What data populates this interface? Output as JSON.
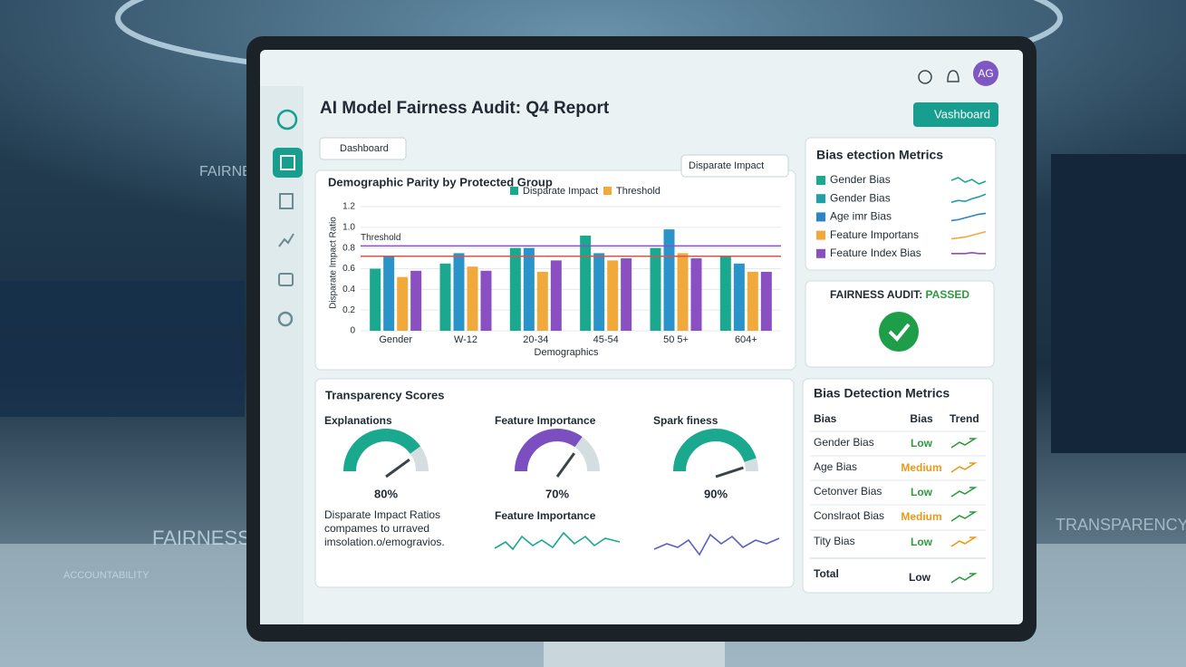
{
  "header": {
    "title": "AI Model Fairness Audit: Q4 Report",
    "avatar": "AG",
    "button": "Vashboard",
    "view_select": "Dashboard"
  },
  "background_words": [
    "FAIRNESS",
    "FAIRNESS",
    "ACCOUNTABILITY",
    "TRANSPARENCY"
  ],
  "chart_data": {
    "type": "bar",
    "title": "Demographic Parity by Protected Group",
    "metric_select": "Disparate Impact",
    "legend": [
      {
        "name": "Disparate Impact",
        "color": "#1aa88f"
      },
      {
        "name": "Threshold",
        "color": "#f2a93b"
      }
    ],
    "y_label": "Disparate Impact Ratio",
    "x_label": "Demographics",
    "categories": [
      "Gender",
      "W-12",
      "20-34",
      "45-54",
      "50 5+",
      "604+"
    ],
    "series": [
      {
        "color": "#1aa88f",
        "values": [
          0.6,
          0.65,
          0.8,
          0.92,
          0.8,
          0.72
        ]
      },
      {
        "color": "#2a93c9",
        "values": [
          0.72,
          0.75,
          0.8,
          0.75,
          0.98,
          0.65
        ]
      },
      {
        "color": "#f2a93b",
        "values": [
          0.52,
          0.62,
          0.57,
          0.68,
          0.75,
          0.57
        ]
      },
      {
        "color": "#8a4fc0",
        "values": [
          0.58,
          0.58,
          0.68,
          0.7,
          0.7,
          0.57
        ]
      }
    ],
    "annotations": [
      {
        "label": "Threshold",
        "value": 0.82,
        "color": "#8a4fc0"
      }
    ],
    "reference_lines": [
      {
        "value": 0.72,
        "color": "#d9534f"
      }
    ],
    "ylim": [
      0,
      1.2
    ],
    "yticks": [
      0,
      0.2,
      0.4,
      0.6,
      0.8,
      {
        "value": 1,
        "label": "1.0"
      },
      1.2
    ],
    "grid": true
  },
  "metrics_panel": {
    "title": "Bias etection Metrics",
    "items": [
      {
        "name": "Gender Bias",
        "color": "#1aa88f"
      },
      {
        "name": "Gender Bias",
        "color": "#1f9fa8"
      },
      {
        "name": "Age imr Bias",
        "color": "#2a84c9"
      },
      {
        "name": "Feature Importans",
        "color": "#f2a93b"
      },
      {
        "name": "Feature Index Bias",
        "color": "#8a4fc0"
      }
    ]
  },
  "audit": {
    "label": "FAIRNESS AUDIT: ",
    "status": "PASSED"
  },
  "transparency": {
    "title": "Transparency Scores",
    "gauges": [
      {
        "title": "Explanations",
        "value": 80,
        "value_label": "80%",
        "color": "#1aa88f"
      },
      {
        "title": "Feature Importance",
        "value": 70,
        "value_label": "70%",
        "color": "#7b4fc0"
      },
      {
        "title": "Spark finess",
        "value": 90,
        "value_label": "90%",
        "color": "#1aa88f"
      }
    ],
    "note": [
      "Disparate Impact Ratios",
      "compames to urraved",
      "imsolation.o/emogravios."
    ],
    "spark_label": "Feature Importance"
  },
  "bias_table": {
    "title": "Bias Detection Metrics",
    "headers": [
      "Bias",
      "Bias",
      "Trend"
    ],
    "rows": [
      {
        "name": "Gender Bias",
        "level": "Low",
        "level_color": "#2e9a3e",
        "trend_color": "#2e9a3e"
      },
      {
        "name": "Age Bias",
        "level": "Medium",
        "level_color": "#e89a1a",
        "trend_color": "#e89a1a"
      },
      {
        "name": "Cetonver Bias",
        "level": "Low",
        "level_color": "#2e9a3e",
        "trend_color": "#2e9a3e"
      },
      {
        "name": "Conslraot Bias",
        "level": "Medium",
        "level_color": "#e89a1a",
        "trend_color": "#2e9a3e"
      },
      {
        "name": "Tity Bias",
        "level": "Low",
        "level_color": "#2e9a3e",
        "trend_color": "#e89a1a"
      }
    ],
    "total": {
      "name": "Total",
      "level": "Low",
      "trend_color": "#2e9a3e"
    }
  }
}
